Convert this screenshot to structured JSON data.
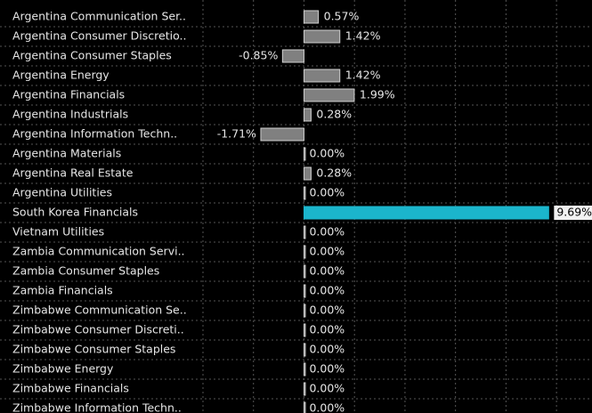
{
  "chart_data": {
    "type": "barh",
    "categories": [
      "Argentina Communication Ser..",
      "Argentina Consumer Discretio..",
      "Argentina Consumer Staples",
      "Argentina Energy",
      "Argentina Financials",
      "Argentina Industrials",
      "Argentina Information Techn..",
      "Argentina Materials",
      "Argentina Real Estate",
      "Argentina Utilities",
      "South Korea Financials",
      "Vietnam Utilities",
      "Zambia Communication Servi..",
      "Zambia Consumer Staples",
      "Zambia Financials",
      "Zimbabwe Communication Se..",
      "Zimbabwe Consumer Discreti..",
      "Zimbabwe Consumer Staples",
      "Zimbabwe Energy",
      "Zimbabwe Financials",
      "Zimbabwe Information Techn.."
    ],
    "values": [
      0.57,
      1.42,
      -0.85,
      1.42,
      1.99,
      0.28,
      -1.71,
      0,
      0.28,
      0,
      9.69,
      0,
      0,
      0,
      0,
      0,
      0,
      0,
      0,
      0,
      0
    ],
    "value_labels": [
      "0.57%",
      "1.42%",
      "-0.85%",
      "1.42%",
      "1.99%",
      "0.28%",
      "-1.71%",
      "0.00%",
      "0.28%",
      "0.00%",
      "9.69%",
      "0.00%",
      "0.00%",
      "0.00%",
      "0.00%",
      "0.00%",
      "0.00%",
      "0.00%",
      "0.00%",
      "0.00%",
      "0.00%"
    ],
    "color": "#808080",
    "colors": [
      "#808080",
      "#808080",
      "#808080",
      "#808080",
      "#808080",
      "#808080",
      "#808080",
      "#808080",
      "#808080",
      "#808080",
      "#1bb5cc",
      "#808080",
      "#808080",
      "#808080",
      "#808080",
      "#808080",
      "#808080",
      "#808080",
      "#808080",
      "#808080",
      "#808080"
    ],
    "xlim": [
      -4,
      11.3
    ],
    "xticks": [
      -4,
      -2,
      0,
      2,
      4,
      6,
      8,
      10
    ],
    "grid": true
  }
}
